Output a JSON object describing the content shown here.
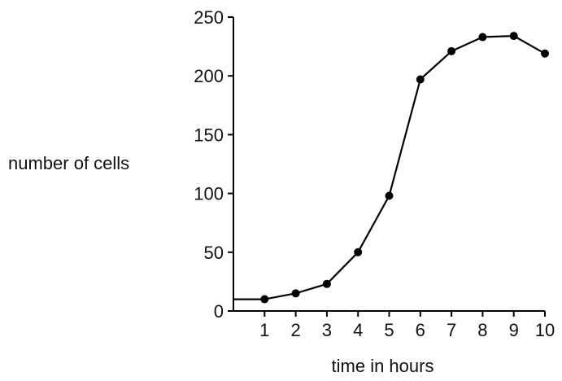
{
  "chart_data": {
    "type": "line",
    "title": "",
    "xlabel": "time in hours",
    "ylabel": "number of cells",
    "x": [
      1,
      2,
      3,
      4,
      5,
      6,
      7,
      8,
      9,
      10
    ],
    "series": [
      {
        "values": [
          10,
          15,
          23,
          50,
          98,
          197,
          221,
          233,
          234,
          219
        ]
      }
    ],
    "start_value": 10,
    "xlim": [
      0,
      10
    ],
    "ylim": [
      0,
      250
    ],
    "x_ticks": [
      "1",
      "2",
      "3",
      "4",
      "5",
      "6",
      "7",
      "8",
      "9",
      "10"
    ],
    "y_ticks": [
      "0",
      "50",
      "100",
      "150",
      "200",
      "250"
    ],
    "grid": false,
    "legend": "none",
    "colors": {
      "line": "#000000",
      "marker": "#000000",
      "axis": "#000000"
    }
  }
}
